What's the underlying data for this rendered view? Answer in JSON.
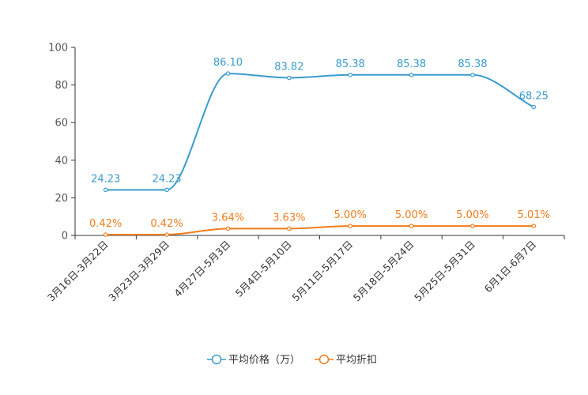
{
  "chart_data": {
    "type": "line",
    "categories": [
      "3月16日-3月22日",
      "3月23日-3月29日",
      "4月27日-5月3日",
      "5月4日-5月10日",
      "5月11日-5月17日",
      "5月18日-5月24日",
      "5月25日-5月31日",
      "6月1日-6月7日"
    ],
    "ylim": [
      0,
      100
    ],
    "yticks": [
      0,
      20,
      40,
      60,
      80,
      100
    ],
    "yticks_labels": [
      "0",
      "20",
      "40",
      "60",
      "80",
      "100"
    ],
    "grid": false,
    "legend_position": "bottom-center",
    "series": [
      {
        "name": "平均价格（万）",
        "color": "#3a9bcc",
        "values": [
          24.23,
          24.23,
          86.1,
          83.82,
          85.38,
          85.38,
          85.38,
          68.25
        ],
        "labels": [
          "24.23",
          "24.23",
          "86.10",
          "83.82",
          "85.38",
          "85.38",
          "85.38",
          "68.25"
        ]
      },
      {
        "name": "平均折扣",
        "color": "#f07c1c",
        "values": [
          0.42,
          0.42,
          3.64,
          3.63,
          5.0,
          5.0,
          5.0,
          5.01
        ],
        "labels": [
          "0.42%",
          "0.42%",
          "3.64%",
          "3.63%",
          "5.00%",
          "5.00%",
          "5.00%",
          "5.01%"
        ]
      }
    ]
  }
}
